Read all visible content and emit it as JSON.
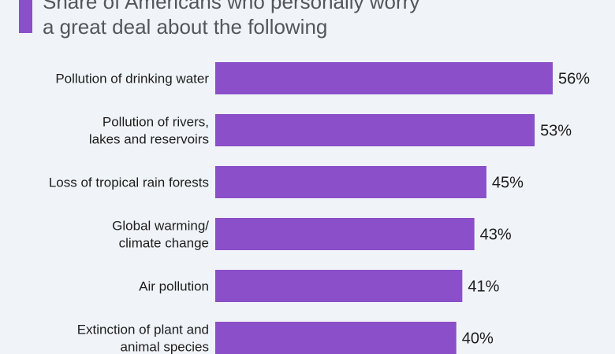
{
  "chart_data": {
    "type": "bar",
    "orientation": "horizontal",
    "title": [
      "Share of Americans who personally worry",
      "a great deal about the following"
    ],
    "categories": [
      [
        "Pollution of drinking water"
      ],
      [
        "Pollution of rivers,",
        "lakes and reservoirs"
      ],
      [
        "Loss of tropical rain forests"
      ],
      [
        "Global warming/",
        "climate change"
      ],
      [
        "Air pollution"
      ],
      [
        "Extinction of plant and",
        "animal species"
      ]
    ],
    "values": [
      56,
      53,
      45,
      43,
      41,
      40
    ],
    "value_labels": [
      "56%",
      "53%",
      "45%",
      "43%",
      "41%",
      "40%"
    ],
    "xlim": [
      0,
      56
    ],
    "bar_color": "#8a4fc9",
    "grid": false,
    "legend": "none"
  }
}
